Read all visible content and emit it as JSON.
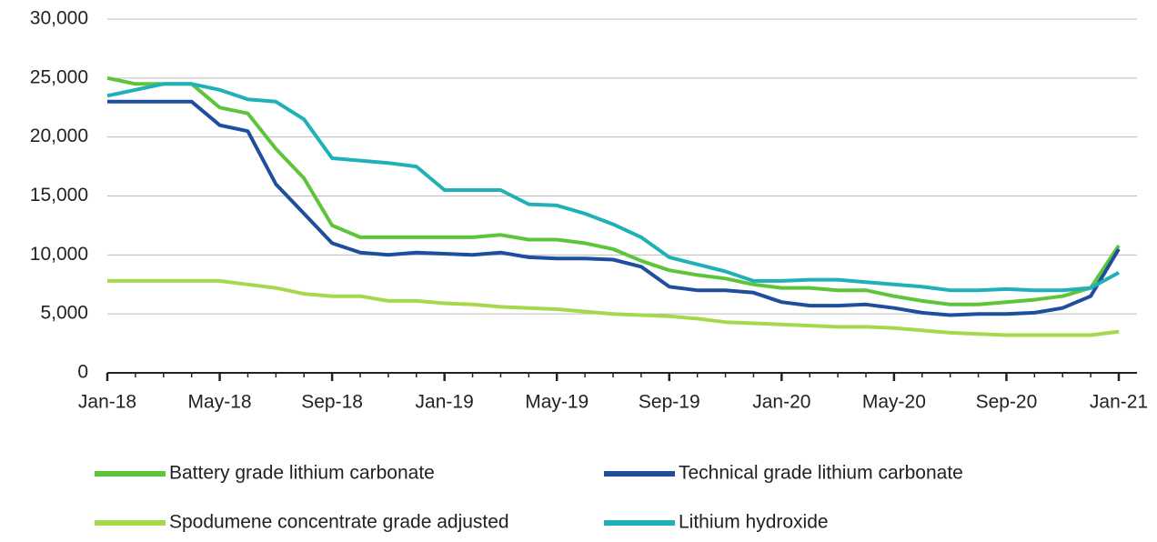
{
  "chart_data": {
    "type": "line",
    "x": [
      "Jan-18",
      "Feb-18",
      "Mar-18",
      "Apr-18",
      "May-18",
      "Jun-18",
      "Jul-18",
      "Aug-18",
      "Sep-18",
      "Oct-18",
      "Nov-18",
      "Dec-18",
      "Jan-19",
      "Feb-19",
      "Mar-19",
      "Apr-19",
      "May-19",
      "Jun-19",
      "Jul-19",
      "Aug-19",
      "Sep-19",
      "Oct-19",
      "Nov-19",
      "Dec-19",
      "Jan-20",
      "Feb-20",
      "Mar-20",
      "Apr-20",
      "May-20",
      "Jun-20",
      "Jul-20",
      "Aug-20",
      "Sep-20",
      "Oct-20",
      "Nov-20",
      "Dec-20",
      "Jan-21"
    ],
    "xticks": [
      "Jan-18",
      "May-18",
      "Sep-18",
      "Jan-19",
      "May-19",
      "Sep-19",
      "Jan-20",
      "May-20",
      "Sep-20",
      "Jan-21"
    ],
    "series": [
      {
        "name": "Battery grade lithium carbonate",
        "color": "#5ec43a",
        "values": [
          25000,
          24500,
          24500,
          24500,
          22500,
          22000,
          19000,
          16500,
          12500,
          11500,
          11500,
          11500,
          11500,
          11500,
          11700,
          11300,
          11300,
          11000,
          10500,
          9500,
          8700,
          8300,
          8000,
          7500,
          7200,
          7200,
          7000,
          7000,
          6500,
          6100,
          5800,
          5800,
          6000,
          6200,
          6500,
          7200,
          10800
        ]
      },
      {
        "name": "Technical grade lithium carbonate",
        "color": "#1f4e9c",
        "values": [
          23000,
          23000,
          23000,
          23000,
          21000,
          20500,
          16000,
          13500,
          11000,
          10200,
          10000,
          10200,
          10100,
          10000,
          10200,
          9800,
          9700,
          9700,
          9600,
          9000,
          7300,
          7000,
          7000,
          6800,
          6000,
          5700,
          5700,
          5800,
          5500,
          5100,
          4900,
          5000,
          5000,
          5100,
          5500,
          6500,
          10500
        ]
      },
      {
        "name": "Spodumene concentrate grade adjusted",
        "color": "#a6d84a",
        "values": [
          7800,
          7800,
          7800,
          7800,
          7800,
          7500,
          7200,
          6700,
          6500,
          6500,
          6100,
          6100,
          5900,
          5800,
          5600,
          5500,
          5400,
          5200,
          5000,
          4900,
          4800,
          4600,
          4300,
          4200,
          4100,
          4000,
          3900,
          3900,
          3800,
          3600,
          3400,
          3300,
          3200,
          3200,
          3200,
          3200,
          3500
        ]
      },
      {
        "name": "Lithium hydroxide",
        "color": "#1fb0b8",
        "values": [
          23500,
          24000,
          24500,
          24500,
          24000,
          23200,
          23000,
          21500,
          18200,
          18000,
          17800,
          17500,
          15500,
          15500,
          15500,
          14300,
          14200,
          13500,
          12600,
          11500,
          9800,
          9200,
          8600,
          7800,
          7800,
          7900,
          7900,
          7700,
          7500,
          7300,
          7000,
          7000,
          7100,
          7000,
          7000,
          7200,
          8500
        ]
      }
    ],
    "ylim": [
      0,
      30000
    ],
    "yticks": [
      0,
      {
        "value": 5000,
        "label": "5,000"
      },
      {
        "value": 10000,
        "label": "10,000"
      },
      {
        "value": 15000,
        "label": "15,000"
      },
      {
        "value": 20000,
        "label": "20,000"
      },
      {
        "value": 25000,
        "label": "25,000"
      },
      {
        "value": 30000,
        "label": "30,000"
      }
    ],
    "grid": true,
    "legend": "bottom"
  }
}
